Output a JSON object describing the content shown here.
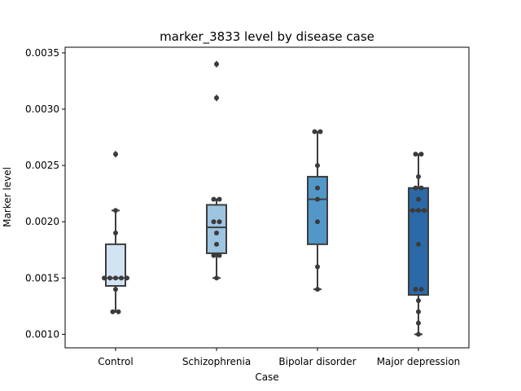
{
  "chart_data": {
    "type": "box",
    "title": "marker_3833 level by disease case",
    "xlabel": "Case",
    "ylabel": "Marker level",
    "categories": [
      "Control",
      "Schizophrenia",
      "Bipolar disorder",
      "Major depression"
    ],
    "ylim": [
      0.00088,
      0.00355
    ],
    "yticks": [
      0.001,
      0.0015,
      0.002,
      0.0025,
      0.003,
      0.0035
    ],
    "ytick_labels": [
      "0.0010",
      "0.0015",
      "0.0020",
      "0.0025",
      "0.0030",
      "0.0035"
    ],
    "grid": false,
    "colors": {
      "Control": "#d2e3f3",
      "Schizophrenia": "#9dc4e0",
      "Bipolar disorder": "#5198c8",
      "Major depression": "#2b69a8",
      "edge": "#3d3d3d",
      "points": "#3b3b3b"
    },
    "boxes": [
      {
        "category": "Control",
        "whisker_low": 0.0012,
        "q1": 0.00143,
        "median": 0.0015,
        "q3": 0.0018,
        "whisker_high": 0.0021,
        "outliers": [
          0.0026
        ]
      },
      {
        "category": "Schizophrenia",
        "whisker_low": 0.0015,
        "q1": 0.00172,
        "median": 0.00195,
        "q3": 0.00215,
        "whisker_high": 0.0022,
        "outliers": [
          0.0031,
          0.0034
        ]
      },
      {
        "category": "Bipolar disorder",
        "whisker_low": 0.0014,
        "q1": 0.0018,
        "median": 0.0022,
        "q3": 0.0024,
        "whisker_high": 0.0028,
        "outliers": []
      },
      {
        "category": "Major depression",
        "whisker_low": 0.001,
        "q1": 0.00135,
        "median": 0.0021,
        "q3": 0.0023,
        "whisker_high": 0.0026,
        "outliers": []
      }
    ],
    "points": [
      {
        "category": "Control",
        "values": [
          0.0026,
          0.0021,
          0.0019,
          0.0015,
          0.0015,
          0.0015,
          0.0015,
          0.0015,
          0.0014,
          0.0012,
          0.0012
        ]
      },
      {
        "category": "Schizophrenia",
        "values": [
          0.0034,
          0.0031,
          0.0022,
          0.0022,
          0.002,
          0.002,
          0.0019,
          0.0018,
          0.0017,
          0.0017,
          0.0015
        ]
      },
      {
        "category": "Bipolar disorder",
        "values": [
          0.0028,
          0.0028,
          0.0025,
          0.0023,
          0.0022,
          0.002,
          0.0016,
          0.0014
        ]
      },
      {
        "category": "Major depression",
        "values": [
          0.0026,
          0.0026,
          0.0024,
          0.0023,
          0.0023,
          0.0022,
          0.0021,
          0.0021,
          0.0021,
          0.0018,
          0.0014,
          0.0014,
          0.0013,
          0.0012,
          0.0011,
          0.001
        ]
      }
    ]
  }
}
